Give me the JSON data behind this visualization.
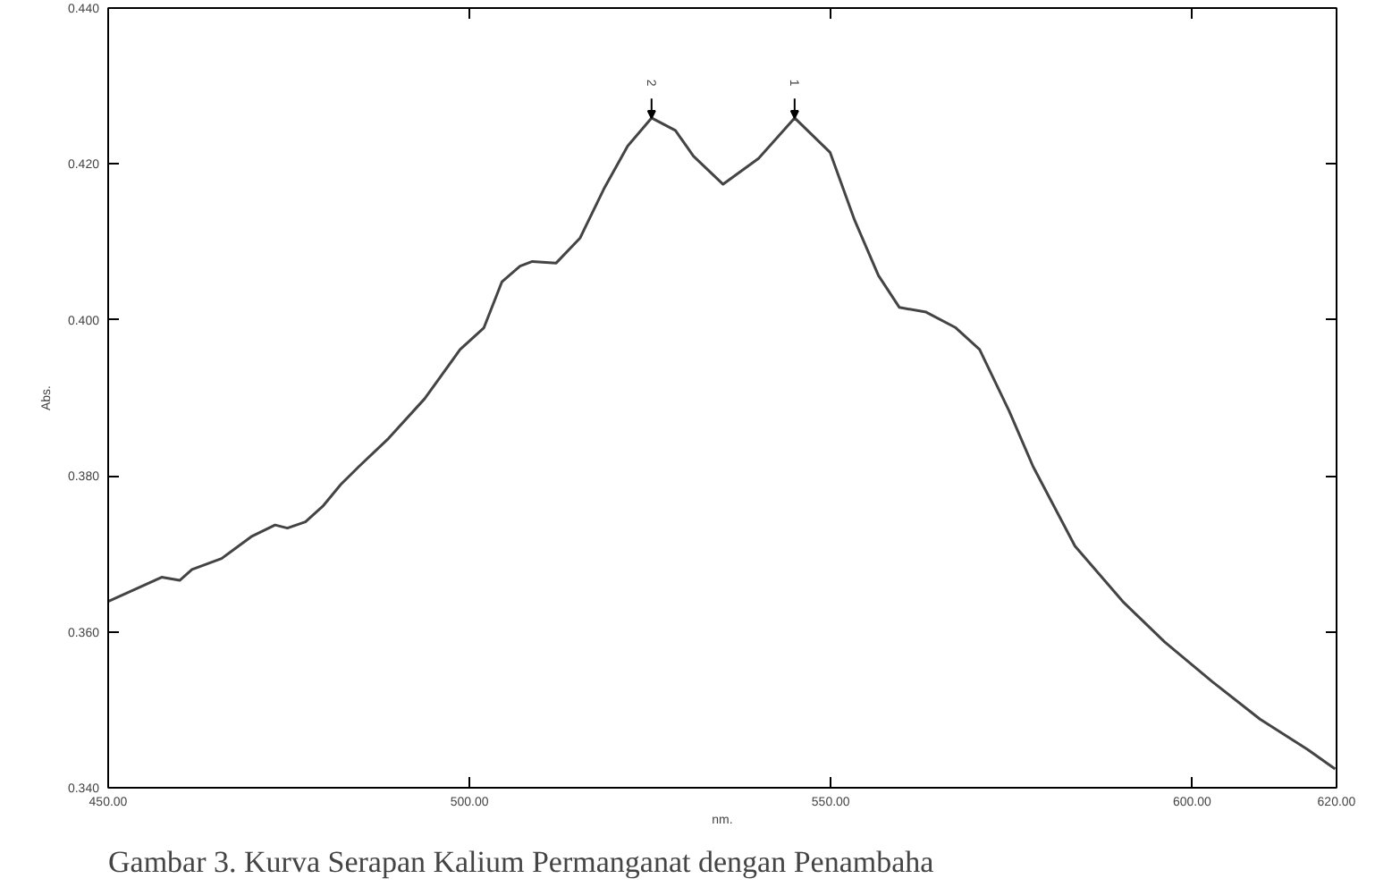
{
  "chart_data": {
    "type": "line",
    "xlabel": "nm.",
    "ylabel": "Abs.",
    "xlim": [
      450,
      620
    ],
    "ylim": [
      0.34,
      0.44
    ],
    "xticks": [
      {
        "value": 450,
        "label": "450.00"
      },
      {
        "value": 500,
        "label": "500.00"
      },
      {
        "value": 550,
        "label": "550.00"
      },
      {
        "value": 600,
        "label": "600.00"
      },
      {
        "value": 620,
        "label": "620.00"
      }
    ],
    "yticks": [
      {
        "value": 0.34,
        "label": "0.340"
      },
      {
        "value": 0.36,
        "label": "0.360"
      },
      {
        "value": 0.38,
        "label": "0.380"
      },
      {
        "value": 0.4,
        "label": "0.400"
      },
      {
        "value": 0.42,
        "label": "0.420"
      },
      {
        "value": 0.44,
        "label": "0.440"
      }
    ],
    "grid": false,
    "marker": "none",
    "line_style": "solid",
    "series": [
      {
        "color": "#444444",
        "x": [
          450,
          457.4,
          459.9,
          461.6,
          465.7,
          469.8,
          473.1,
          474.8,
          477.3,
          479.7,
          482.2,
          484.7,
          488.8,
          493.8,
          498.7,
          502.0,
          504.5,
          507.0,
          508.7,
          512.0,
          515.3,
          518.6,
          521.9,
          525.2,
          528.5,
          531.0,
          535.1,
          540.0,
          545.0,
          549.9,
          553.3,
          556.6,
          559.5,
          563.2,
          567.3,
          570.6,
          574.7,
          578.0,
          583.8,
          590.4,
          596.2,
          602.8,
          609.4,
          616.0,
          619.8
        ],
        "values": [
          0.3639,
          0.367,
          0.3666,
          0.368,
          0.3694,
          0.3722,
          0.3737,
          0.3733,
          0.3741,
          0.3761,
          0.3789,
          0.3812,
          0.3848,
          0.3899,
          0.3962,
          0.399,
          0.4049,
          0.4069,
          0.4075,
          0.4073,
          0.4105,
          0.4168,
          0.4223,
          0.4259,
          0.4243,
          0.421,
          0.4174,
          0.4207,
          0.4259,
          0.4215,
          0.4128,
          0.4057,
          0.4016,
          0.401,
          0.399,
          0.3962,
          0.3883,
          0.3812,
          0.371,
          0.3639,
          0.3587,
          0.3536,
          0.3488,
          0.3449,
          0.3424
        ]
      }
    ],
    "annotations": [
      {
        "text": "2",
        "x": 525.2,
        "y": 0.4259
      },
      {
        "text": "1",
        "x": 545.0,
        "y": 0.4259
      },
      "Gambar 3. Kurva Serapan Kalium Permanganat dengan Penambaha"
    ]
  }
}
